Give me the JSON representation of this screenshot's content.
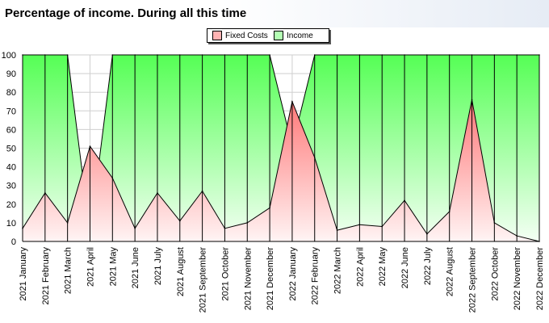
{
  "title": "Percentage of income. During all this time",
  "legend": {
    "fixed_costs": "Fixed Costs",
    "income": "Income"
  },
  "colors": {
    "fixed_costs": "#ff8a8a",
    "income": "#66ff66",
    "grid": "#cfcfcf"
  },
  "chart_data": {
    "type": "area",
    "categories": [
      "2021 January",
      "2021 February",
      "2021 March",
      "2021 April",
      "2021 May",
      "2021 June",
      "2021 July",
      "2021 August",
      "2021 September",
      "2021 October",
      "2021 November",
      "2021 December",
      "2022 January",
      "2022 February",
      "2022 March",
      "2022 April",
      "2022 May",
      "2022 June",
      "2022 July",
      "2022 August",
      "2022 September",
      "2022 October",
      "2022 November",
      "2022 December"
    ],
    "series": [
      {
        "name": "Fixed Costs",
        "values": [
          7,
          26,
          10,
          51,
          34,
          7,
          26,
          11,
          27,
          7,
          10,
          18,
          75,
          45,
          6,
          9,
          8,
          22,
          4,
          16,
          76,
          10,
          3,
          0
        ]
      },
      {
        "name": "Income",
        "values": [
          100,
          100,
          100,
          4,
          100,
          100,
          100,
          100,
          100,
          100,
          100,
          100,
          51,
          100,
          100,
          100,
          100,
          100,
          100,
          100,
          100,
          100,
          100,
          100
        ]
      }
    ],
    "yticks": [
      "0",
      "10",
      "20",
      "30",
      "40",
      "50",
      "60",
      "70",
      "80",
      "90",
      "100"
    ],
    "ylim": [
      0,
      100
    ],
    "grid": true,
    "legend_position": "top-center"
  }
}
